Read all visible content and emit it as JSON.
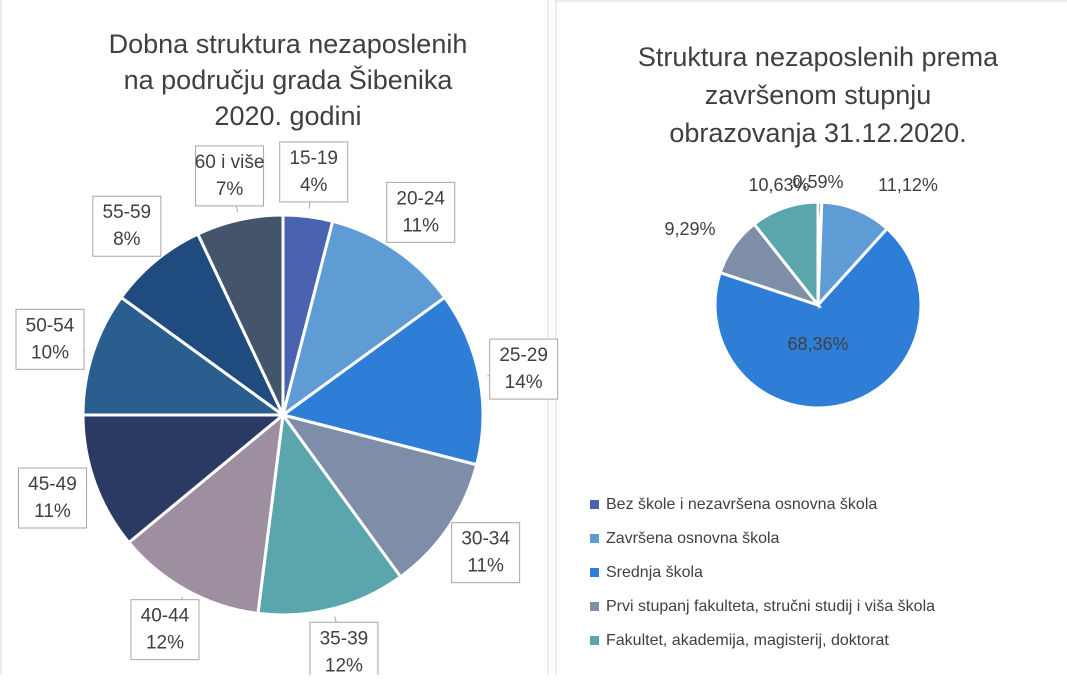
{
  "chart_data": [
    {
      "type": "pie",
      "title": [
        "Dobna struktura nezaposlenih",
        "na području grada Šibenika",
        "2020. godini"
      ],
      "categories": [
        "15-19",
        "20-24",
        "25-29",
        "30-34",
        "35-39",
        "40-44",
        "45-49",
        "50-54",
        "55-59",
        "60 i više"
      ],
      "values": [
        4,
        11,
        14,
        11,
        12,
        12,
        11,
        10,
        8,
        7
      ],
      "value_labels": [
        "4%",
        "11%",
        "14%",
        "11%",
        "12%",
        "12%",
        "11%",
        "10%",
        "8%",
        "7%"
      ],
      "colors": [
        "#4a63b0",
        "#5f9bd5",
        "#2e7ed8",
        "#7f8ea8",
        "#5ba5ad",
        "#9e8fa0",
        "#2b3a63",
        "#2a5e8e",
        "#1f4b7f",
        "#44546a"
      ]
    },
    {
      "type": "pie",
      "title": [
        "Struktura nezaposlenih prema",
        "završenom stupnju",
        "obrazovanja 31.12.2020."
      ],
      "series": [
        {
          "name": "Bez škole i nezavršena osnovna škola",
          "color": "#4a63b0",
          "value": 0.59,
          "value_label": "0,59%"
        },
        {
          "name": "Završena osnovna škola",
          "color": "#5f9bd5",
          "value": 11.12,
          "value_label": "11,12%"
        },
        {
          "name": "Srednja škola",
          "color": "#2e7ed8",
          "value": 68.36,
          "value_label": "68,36%"
        },
        {
          "name": "Prvi stupanj fakulteta, stručni studij i viša škola",
          "color": "#7f8ea8",
          "value": 9.29,
          "value_label": "9,29%"
        },
        {
          "name": "Fakultet, akademija, magisterij, doktorat",
          "color": "#5ba5ad",
          "value": 10.63,
          "value_label": "10,63%"
        }
      ],
      "legend": "bottom"
    }
  ]
}
